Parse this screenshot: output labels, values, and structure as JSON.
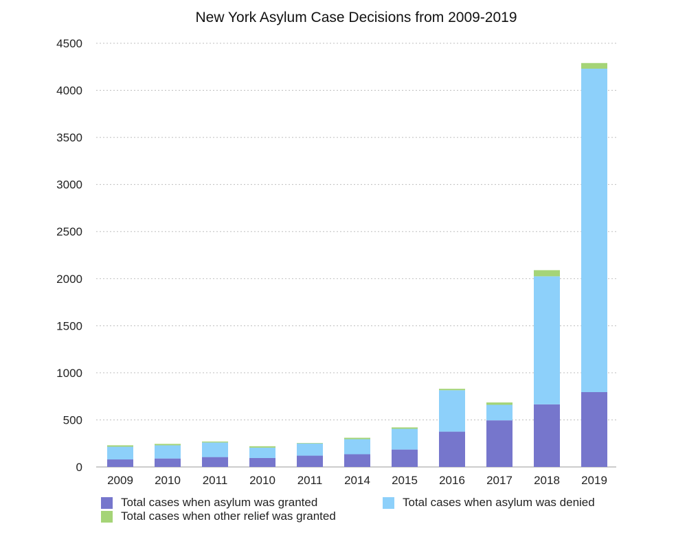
{
  "chart_data": {
    "type": "bar",
    "stacked": true,
    "title": "New York Asylum Case Decisions from 2009-2019",
    "xlabel": "",
    "ylabel": "",
    "categories": [
      "2009",
      "2010",
      "2011",
      "2010",
      "2011",
      "2014",
      "2015",
      "2016",
      "2017",
      "2018",
      "2019"
    ],
    "ylim": [
      0,
      4500
    ],
    "yticks": [
      "0",
      "500",
      "1000",
      "1500",
      "2000",
      "2500",
      "3000",
      "3500",
      "4000",
      "4500"
    ],
    "grid": true,
    "legend_position": "bottom",
    "series": [
      {
        "name": "Total cases when asylum was granted",
        "color": "#7676cc",
        "values": [
          80,
          90,
          105,
          95,
          120,
          135,
          185,
          375,
          495,
          665,
          795
        ]
      },
      {
        "name": "Total cases when asylum was denied",
        "color": "#8dd0fa",
        "values": [
          135,
          140,
          155,
          110,
          130,
          160,
          220,
          440,
          165,
          1360,
          3435
        ]
      },
      {
        "name": "Total cases when other relief was granted",
        "color": "#a5d477",
        "values": [
          15,
          15,
          10,
          15,
          5,
          15,
          15,
          15,
          25,
          65,
          60
        ]
      }
    ]
  }
}
